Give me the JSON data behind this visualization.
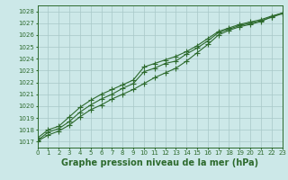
{
  "x": [
    0,
    1,
    2,
    3,
    4,
    5,
    6,
    7,
    8,
    9,
    10,
    11,
    12,
    13,
    14,
    15,
    16,
    17,
    18,
    19,
    20,
    21,
    22,
    23
  ],
  "line1": [
    1017.1,
    1017.8,
    1018.1,
    1018.7,
    1019.5,
    1020.1,
    1020.6,
    1021.0,
    1021.5,
    1021.9,
    1022.9,
    1023.2,
    1023.6,
    1023.8,
    1024.4,
    1024.9,
    1025.5,
    1026.2,
    1026.5,
    1026.8,
    1027.0,
    1027.2,
    1027.5,
    1027.8
  ],
  "line2": [
    1017.3,
    1018.0,
    1018.3,
    1019.1,
    1019.9,
    1020.5,
    1021.0,
    1021.4,
    1021.8,
    1022.2,
    1023.3,
    1023.6,
    1023.9,
    1024.2,
    1024.6,
    1025.1,
    1025.7,
    1026.3,
    1026.6,
    1026.9,
    1027.1,
    1027.3,
    1027.6,
    1027.85
  ],
  "line3": [
    1017.05,
    1017.55,
    1017.9,
    1018.4,
    1019.1,
    1019.7,
    1020.1,
    1020.6,
    1021.0,
    1021.4,
    1021.9,
    1022.4,
    1022.8,
    1023.2,
    1023.8,
    1024.5,
    1025.2,
    1026.0,
    1026.4,
    1026.7,
    1026.9,
    1027.15,
    1027.55,
    1027.85
  ],
  "xlim": [
    0,
    23
  ],
  "ylim": [
    1016.5,
    1028.5
  ],
  "yticks": [
    1017,
    1018,
    1019,
    1020,
    1021,
    1022,
    1023,
    1024,
    1025,
    1026,
    1027,
    1028
  ],
  "xticks": [
    0,
    1,
    2,
    3,
    4,
    5,
    6,
    7,
    8,
    9,
    10,
    11,
    12,
    13,
    14,
    15,
    16,
    17,
    18,
    19,
    20,
    21,
    22,
    23
  ],
  "xlabel": "Graphe pression niveau de la mer (hPa)",
  "line_color": "#2d6a2d",
  "bg_color": "#cce8e8",
  "grid_color": "#a8c8c8",
  "marker": "+",
  "marker_size": 4,
  "line_width": 0.8,
  "xlabel_fontsize": 7,
  "tick_fontsize": 5
}
